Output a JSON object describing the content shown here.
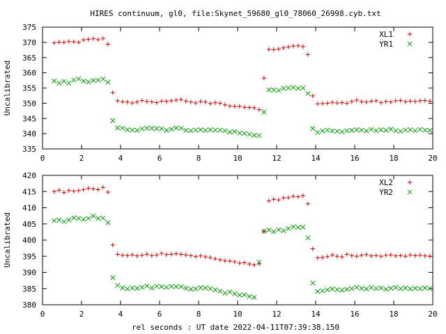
{
  "title": "HIRES continuum, gl0, file:Skynet_59680_gl0_78060_26998.cyb.txt",
  "xlabel": "rel seconds : UT date 2022-04-11T07:39:38.150",
  "colors": {
    "red": "#cc0000",
    "green": "#009900"
  },
  "chart_data": [
    {
      "type": "scatter",
      "ylabel": "Uncalibrated",
      "xlim": [
        0,
        20
      ],
      "ylim": [
        335,
        375
      ],
      "xticks": [
        0,
        2,
        4,
        6,
        8,
        10,
        12,
        14,
        16,
        18,
        20
      ],
      "yticks": [
        335,
        340,
        345,
        350,
        355,
        360,
        365,
        370,
        375
      ],
      "legend_position": "top-right",
      "x": [
        0.6,
        0.85,
        1.1,
        1.35,
        1.6,
        1.85,
        2.1,
        2.35,
        2.6,
        2.85,
        3.1,
        3.35,
        3.6,
        3.85,
        4.1,
        4.35,
        4.6,
        4.85,
        5.1,
        5.35,
        5.6,
        5.85,
        6.1,
        6.35,
        6.6,
        6.85,
        7.1,
        7.35,
        7.6,
        7.85,
        8.1,
        8.35,
        8.6,
        8.85,
        9.1,
        9.35,
        9.6,
        9.85,
        10.1,
        10.35,
        10.6,
        10.85,
        11.1,
        11.35,
        11.6,
        11.85,
        12.1,
        12.35,
        12.6,
        12.85,
        13.1,
        13.35,
        13.6,
        13.85,
        14.1,
        14.35,
        14.6,
        14.85,
        15.1,
        15.35,
        15.6,
        15.85,
        16.1,
        16.35,
        16.6,
        16.85,
        17.1,
        17.35,
        17.6,
        17.85,
        18.1,
        18.35,
        18.6,
        18.85,
        19.1,
        19.35,
        19.6,
        19.85
      ],
      "series": [
        {
          "name": "XL1",
          "marker": "plus",
          "color": "#cc0000",
          "values": [
            369.8,
            370.1,
            370.0,
            370.3,
            370.2,
            370.0,
            370.8,
            371.0,
            371.2,
            370.9,
            371.3,
            369.4,
            353.5,
            350.8,
            350.5,
            350.4,
            350.1,
            350.4,
            350.9,
            350.6,
            350.5,
            350.2,
            350.7,
            350.6,
            350.8,
            351.0,
            351.2,
            350.7,
            350.4,
            350.1,
            350.6,
            350.4,
            349.9,
            350.2,
            350.0,
            349.5,
            349.1,
            349.0,
            349.0,
            348.7,
            348.6,
            348.5,
            347.9,
            358.3,
            367.7,
            367.6,
            367.8,
            368.2,
            368.5,
            368.8,
            368.9,
            368.6,
            366.0,
            352.4,
            349.8,
            349.9,
            350.0,
            350.3,
            350.1,
            350.2,
            350.0,
            350.6,
            351.0,
            350.5,
            350.4,
            350.7,
            350.8,
            350.2,
            350.6,
            350.4,
            350.8,
            350.9,
            350.5,
            350.7,
            350.6,
            350.8,
            350.9,
            350.7
          ]
        },
        {
          "name": "YR1",
          "marker": "cross",
          "color": "#009900",
          "values": [
            357.3,
            356.6,
            357.2,
            356.6,
            357.6,
            358.0,
            357.3,
            357.0,
            357.5,
            357.6,
            358.0,
            356.9,
            344.3,
            341.9,
            341.8,
            341.3,
            341.2,
            341.1,
            341.6,
            341.8,
            341.8,
            341.7,
            341.6,
            341.1,
            341.5,
            341.9,
            341.8,
            341.1,
            341.0,
            341.2,
            341.3,
            341.1,
            341.3,
            341.2,
            341.2,
            341.0,
            340.5,
            340.7,
            340.2,
            340.1,
            339.8,
            339.5,
            339.4,
            347.1,
            354.4,
            354.4,
            354.2,
            354.9,
            355.0,
            355.2,
            354.9,
            355.0,
            353.2,
            341.7,
            340.4,
            340.9,
            341.2,
            340.9,
            340.8,
            340.6,
            341.0,
            341.1,
            341.3,
            341.2,
            340.9,
            341.4,
            341.0,
            341.3,
            341.1,
            341.5,
            341.0,
            340.8,
            341.2,
            341.3,
            341.0,
            341.4,
            341.2,
            341.1
          ]
        }
      ]
    },
    {
      "type": "scatter",
      "ylabel": "Uncalibrated",
      "xlim": [
        0,
        20
      ],
      "ylim": [
        380,
        420
      ],
      "xticks": [
        0,
        2,
        4,
        6,
        8,
        10,
        12,
        14,
        16,
        18,
        20
      ],
      "yticks": [
        380,
        385,
        390,
        395,
        400,
        405,
        410,
        415,
        420
      ],
      "legend_position": "top-right",
      "x": [
        0.6,
        0.85,
        1.1,
        1.35,
        1.6,
        1.85,
        2.1,
        2.35,
        2.6,
        2.85,
        3.1,
        3.35,
        3.6,
        3.85,
        4.1,
        4.35,
        4.6,
        4.85,
        5.1,
        5.35,
        5.6,
        5.85,
        6.1,
        6.35,
        6.6,
        6.85,
        7.1,
        7.35,
        7.6,
        7.85,
        8.1,
        8.35,
        8.6,
        8.85,
        9.1,
        9.35,
        9.6,
        9.85,
        10.1,
        10.35,
        10.6,
        10.85,
        11.1,
        11.35,
        11.6,
        11.85,
        12.1,
        12.35,
        12.6,
        12.85,
        13.1,
        13.35,
        13.6,
        13.85,
        14.1,
        14.35,
        14.6,
        14.85,
        15.1,
        15.35,
        15.6,
        15.85,
        16.1,
        16.35,
        16.6,
        16.85,
        17.1,
        17.35,
        17.6,
        17.85,
        18.1,
        18.35,
        18.6,
        18.85,
        19.1,
        19.35,
        19.6,
        19.85
      ],
      "series": [
        {
          "name": "XL2",
          "marker": "plus",
          "color": "#cc0000",
          "values": [
            415.0,
            415.4,
            414.7,
            415.3,
            415.1,
            415.3,
            415.6,
            416.0,
            415.8,
            415.6,
            416.3,
            414.8,
            398.5,
            395.6,
            395.3,
            395.2,
            395.4,
            395.1,
            395.3,
            395.6,
            395.2,
            395.4,
            395.9,
            395.5,
            395.6,
            395.8,
            395.6,
            395.4,
            395.2,
            394.9,
            395.1,
            394.8,
            394.6,
            394.2,
            393.9,
            393.6,
            393.5,
            393.3,
            392.9,
            393.0,
            392.6,
            392.3,
            392.7,
            402.7,
            412.1,
            412.6,
            412.4,
            413.0,
            413.1,
            413.5,
            413.4,
            413.7,
            411.2,
            397.3,
            394.5,
            394.6,
            394.9,
            395.4,
            395.0,
            394.8,
            395.6,
            395.2,
            395.0,
            395.3,
            395.5,
            395.1,
            395.2,
            395.0,
            395.3,
            395.4,
            395.1,
            395.2,
            395.0,
            395.4,
            395.2,
            395.3,
            395.1,
            395.0
          ]
        },
        {
          "name": "YR2",
          "marker": "cross",
          "color": "#009900",
          "values": [
            406.0,
            406.2,
            405.7,
            406.2,
            406.9,
            406.7,
            406.4,
            406.7,
            407.4,
            406.7,
            406.8,
            405.4,
            388.4,
            386.0,
            385.2,
            384.9,
            385.2,
            385.1,
            385.4,
            385.8,
            385.2,
            385.7,
            385.6,
            385.4,
            385.7,
            385.6,
            385.6,
            385.1,
            384.8,
            384.9,
            385.3,
            385.2,
            385.0,
            384.6,
            384.2,
            383.6,
            384.0,
            383.4,
            383.0,
            383.1,
            382.6,
            382.3,
            393.2,
            402.7,
            403.1,
            402.6,
            403.2,
            402.9,
            403.6,
            404.1,
            403.9,
            404.0,
            400.7,
            386.7,
            384.1,
            384.3,
            384.6,
            384.9,
            384.7,
            384.5,
            384.8,
            385.0,
            385.4,
            385.1,
            384.9,
            385.3,
            385.0,
            385.2,
            384.8,
            385.1,
            385.3,
            385.0,
            385.2,
            384.9,
            385.1,
            385.0,
            385.2,
            385.0
          ]
        }
      ]
    }
  ]
}
